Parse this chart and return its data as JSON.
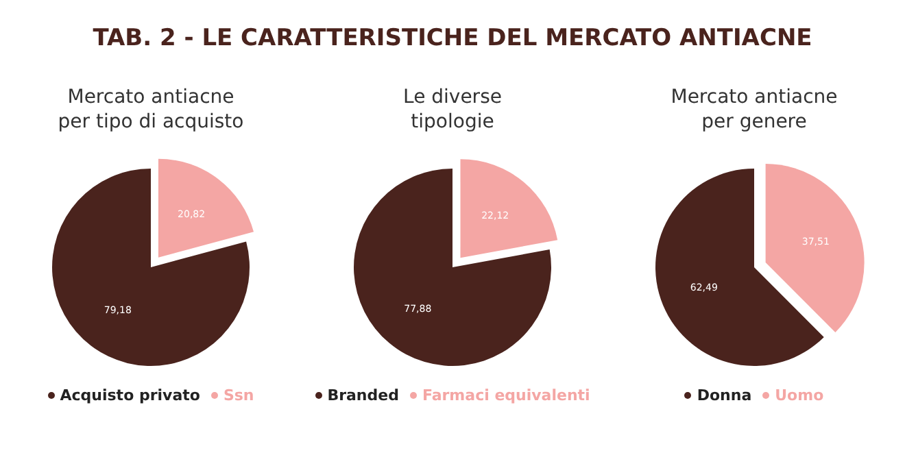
{
  "chart_data": [
    {
      "type": "other",
      "title": "TAB. 2 - LE CARATTERISTICHE DEL MERCATO ANTIACNE"
    },
    {
      "type": "pie",
      "title": "Mercato antiacne\nper tipo di acquisto",
      "categories": [
        "Acquisto privato",
        "Ssn"
      ],
      "values": [
        79.18,
        20.82
      ],
      "value_labels": [
        "79,18",
        "20,82"
      ],
      "colors": [
        "#4a231d",
        "#f4a6a4"
      ],
      "legend": "bottom"
    },
    {
      "type": "pie",
      "title": "Le diverse\ntipologie",
      "categories": [
        "Branded",
        "Farmaci equivalenti"
      ],
      "values": [
        77.88,
        22.12
      ],
      "value_labels": [
        "77,88",
        "22,12"
      ],
      "colors": [
        "#4a231d",
        "#f4a6a4"
      ],
      "legend": "bottom"
    },
    {
      "type": "pie",
      "title": "Mercato antiacne\nper genere",
      "categories": [
        "Donna",
        "Uomo"
      ],
      "values": [
        62.49,
        37.51
      ],
      "value_labels": [
        "62,49",
        "37,51"
      ],
      "colors": [
        "#4a231d",
        "#f4a6a4"
      ],
      "legend": "bottom"
    }
  ]
}
